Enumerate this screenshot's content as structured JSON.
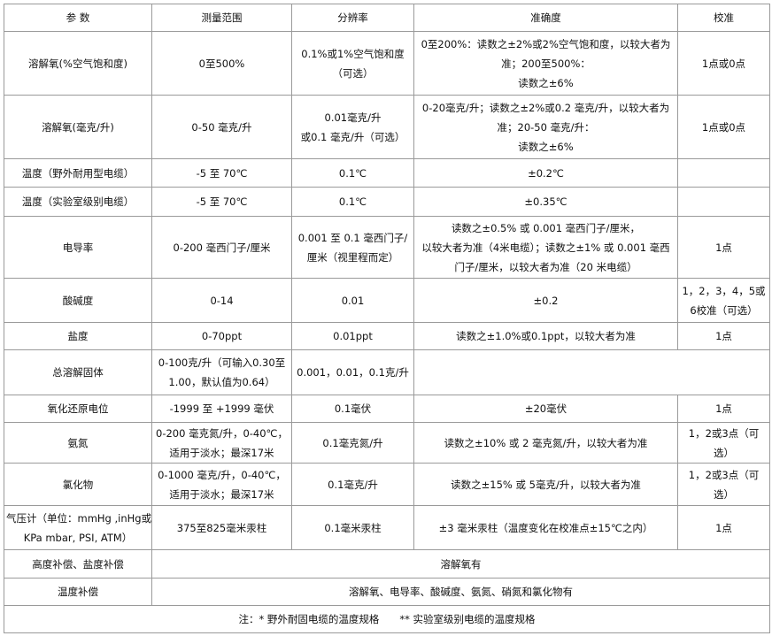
{
  "table": {
    "header": [
      "参 数",
      "测量范围",
      "分辨率",
      "准确度",
      "校准"
    ],
    "rows": [
      {
        "h": 72,
        "cells": [
          {
            "lines": [
              "溶解氧(%空气饱和度)"
            ]
          },
          {
            "lines": [
              "0至500%"
            ]
          },
          {
            "lines": [
              "0.1%或1%空气饱和度",
              "（可选）"
            ]
          },
          {
            "lines": [
              "0至200%：读数之±2%或2%空气饱和度，以较大者为",
              "准；200至500%：",
              "读数之±6%"
            ]
          },
          {
            "lines": [
              "1点或0点"
            ]
          }
        ]
      },
      {
        "h": 72,
        "cells": [
          {
            "lines": [
              "溶解氧(毫克/升)"
            ]
          },
          {
            "lines": [
              "0-50 毫克/升"
            ]
          },
          {
            "lines": [
              "0.01毫克/升",
              "或0.1 毫克/升（可选）"
            ]
          },
          {
            "lines": [
              "0-20毫克/升；读数之±2%或0.2 毫克/升，以较大者为",
              "准；20-50 毫克/升：",
              "读数之±6%"
            ]
          },
          {
            "lines": [
              "1点或0点"
            ]
          }
        ]
      },
      {
        "h": 32,
        "cells": [
          {
            "lines": [
              "温度（野外耐用型电缆）"
            ]
          },
          {
            "lines": [
              "-5 至 70℃"
            ]
          },
          {
            "lines": [
              "0.1℃"
            ]
          },
          {
            "lines": [
              "±0.2℃"
            ]
          },
          {
            "lines": [
              ""
            ]
          }
        ]
      },
      {
        "h": 33,
        "cells": [
          {
            "lines": [
              "温度（实验室级别电缆）"
            ]
          },
          {
            "lines": [
              "-5 至 70℃"
            ]
          },
          {
            "lines": [
              "0.1℃"
            ]
          },
          {
            "lines": [
              "±0.35℃"
            ]
          },
          {
            "lines": [
              ""
            ]
          }
        ]
      },
      {
        "h": 70,
        "cells": [
          {
            "lines": [
              "电导率"
            ]
          },
          {
            "lines": [
              "0-200 毫西门子/厘米"
            ]
          },
          {
            "lines": [
              "0.001 至 0.1 毫西门子/",
              "厘米（视里程而定）"
            ]
          },
          {
            "lines": [
              "读数之±0.5% 或 0.001 毫西门子/厘米，",
              "以较大者为准（4米电缆）；读数之±1% 或 0.001 毫西",
              "门子/厘米，以较大者为准（20 米电缆）"
            ]
          },
          {
            "lines": [
              "1点"
            ]
          }
        ]
      },
      {
        "h": 50,
        "cells": [
          {
            "lines": [
              "酸碱度"
            ]
          },
          {
            "lines": [
              "0-14"
            ]
          },
          {
            "lines": [
              "0.01"
            ]
          },
          {
            "lines": [
              "±0.2"
            ]
          },
          {
            "lines": [
              "1，2，3，4，5或",
              "6校准（可选）"
            ]
          }
        ]
      },
      {
        "h": 31,
        "cells": [
          {
            "lines": [
              "盐度"
            ]
          },
          {
            "lines": [
              "0-70ppt"
            ]
          },
          {
            "lines": [
              "0.01ppt"
            ]
          },
          {
            "lines": [
              "读数之±1.0%或0.1ppt，以较大者为准"
            ]
          },
          {
            "lines": [
              "1点"
            ]
          }
        ]
      },
      {
        "h": 51,
        "cells": [
          {
            "lines": [
              "总溶解固体"
            ]
          },
          {
            "lines": [
              "0-100克/升（可输入0.30至",
              "1.00，默认值为0.64）"
            ]
          },
          {
            "lines": [
              "0.001，0.01，0.1克/升"
            ]
          },
          {
            "lines": [
              ""
            ],
            "colspan": 2
          }
        ]
      },
      {
        "h": 31,
        "cells": [
          {
            "lines": [
              "氧化还原电位"
            ]
          },
          {
            "lines": [
              "-1999 至 +1999 毫伏"
            ]
          },
          {
            "lines": [
              "0.1毫伏"
            ]
          },
          {
            "lines": [
              "±20毫伏"
            ]
          },
          {
            "lines": [
              "1点"
            ]
          }
        ]
      },
      {
        "h": 46,
        "cells": [
          {
            "lines": [
              "氨氮"
            ]
          },
          {
            "lines": [
              "0-200 毫克氮/升，0-40℃，",
              "适用于淡水；最深17米"
            ]
          },
          {
            "lines": [
              "0.1毫克氮/升"
            ]
          },
          {
            "lines": [
              "读数之±10% 或 2 毫克氮/升，以较大者为准"
            ]
          },
          {
            "lines": [
              "1，2或3点（可",
              "选）"
            ]
          }
        ]
      },
      {
        "h": 48,
        "cells": [
          {
            "lines": [
              "氯化物"
            ]
          },
          {
            "lines": [
              "0-1000 毫克/升，0-40℃，",
              "适用于淡水；最深17米"
            ]
          },
          {
            "lines": [
              "0.1毫克/升"
            ]
          },
          {
            "lines": [
              "读数之±15% 或 5毫克/升，以较大者为准"
            ]
          },
          {
            "lines": [
              "1，2或3点（可",
              "选）"
            ]
          }
        ]
      },
      {
        "h": 50,
        "cells": [
          {
            "lines": [
              "气压计（单位：mmHg ,inHg或",
              "KPa mbar, PSI, ATM）"
            ]
          },
          {
            "lines": [
              "375至825毫米汞柱"
            ]
          },
          {
            "lines": [
              "0.1毫米汞柱"
            ]
          },
          {
            "lines": [
              "±3 毫米汞柱（温度变化在校准点±15℃之内）"
            ]
          },
          {
            "lines": [
              "1点"
            ]
          }
        ]
      },
      {
        "h": 32,
        "cells": [
          {
            "lines": [
              "高度补偿、盐度补偿"
            ]
          },
          {
            "lines": [
              "溶解氧有"
            ],
            "colspan": 4
          }
        ]
      },
      {
        "h": 31,
        "cells": [
          {
            "lines": [
              "温度补偿"
            ]
          },
          {
            "lines": [
              "溶解氧、电导率、酸碱度、氨氮、硝氮和氯化物有"
            ],
            "colspan": 4
          }
        ]
      },
      {
        "h": 31,
        "cells": [
          {
            "lines": [
              "注：* 野外耐固电缆的温度规格　　** 实验室级别电缆的温度规格"
            ],
            "colspan": 5
          }
        ]
      }
    ]
  }
}
